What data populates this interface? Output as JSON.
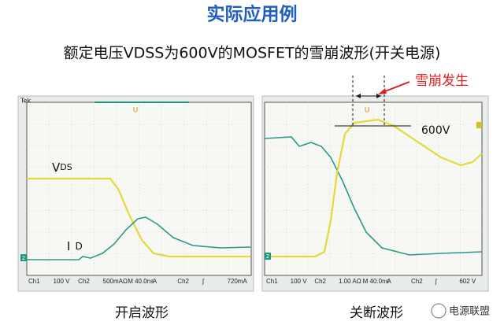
{
  "title": "实际应用例",
  "subtitle": "额定电压VDSS为600V的MOSFET的雪崩波形(开关电源)",
  "panels": [
    {
      "brand": "Tek",
      "vds_label": "V",
      "vds_sub": "DS",
      "id_label": "I",
      "id_sub": "D",
      "status": [
        "Ch1",
        "100 V",
        "Ch2",
        "500mAΩ",
        "M 40.0ns",
        "A",
        "Ch2",
        "∫",
        "720mA"
      ],
      "caption": "开启波形"
    },
    {
      "annotation": "雪崩发生",
      "level_label": "600V",
      "status": [
        "Ch1",
        "100 V",
        "Ch2",
        "1.00 AΩ",
        "M 40.0ns",
        "A",
        "Ch2",
        "∫",
        "602 V"
      ],
      "caption": "关断波形"
    }
  ],
  "watermark": "电源联盟"
}
